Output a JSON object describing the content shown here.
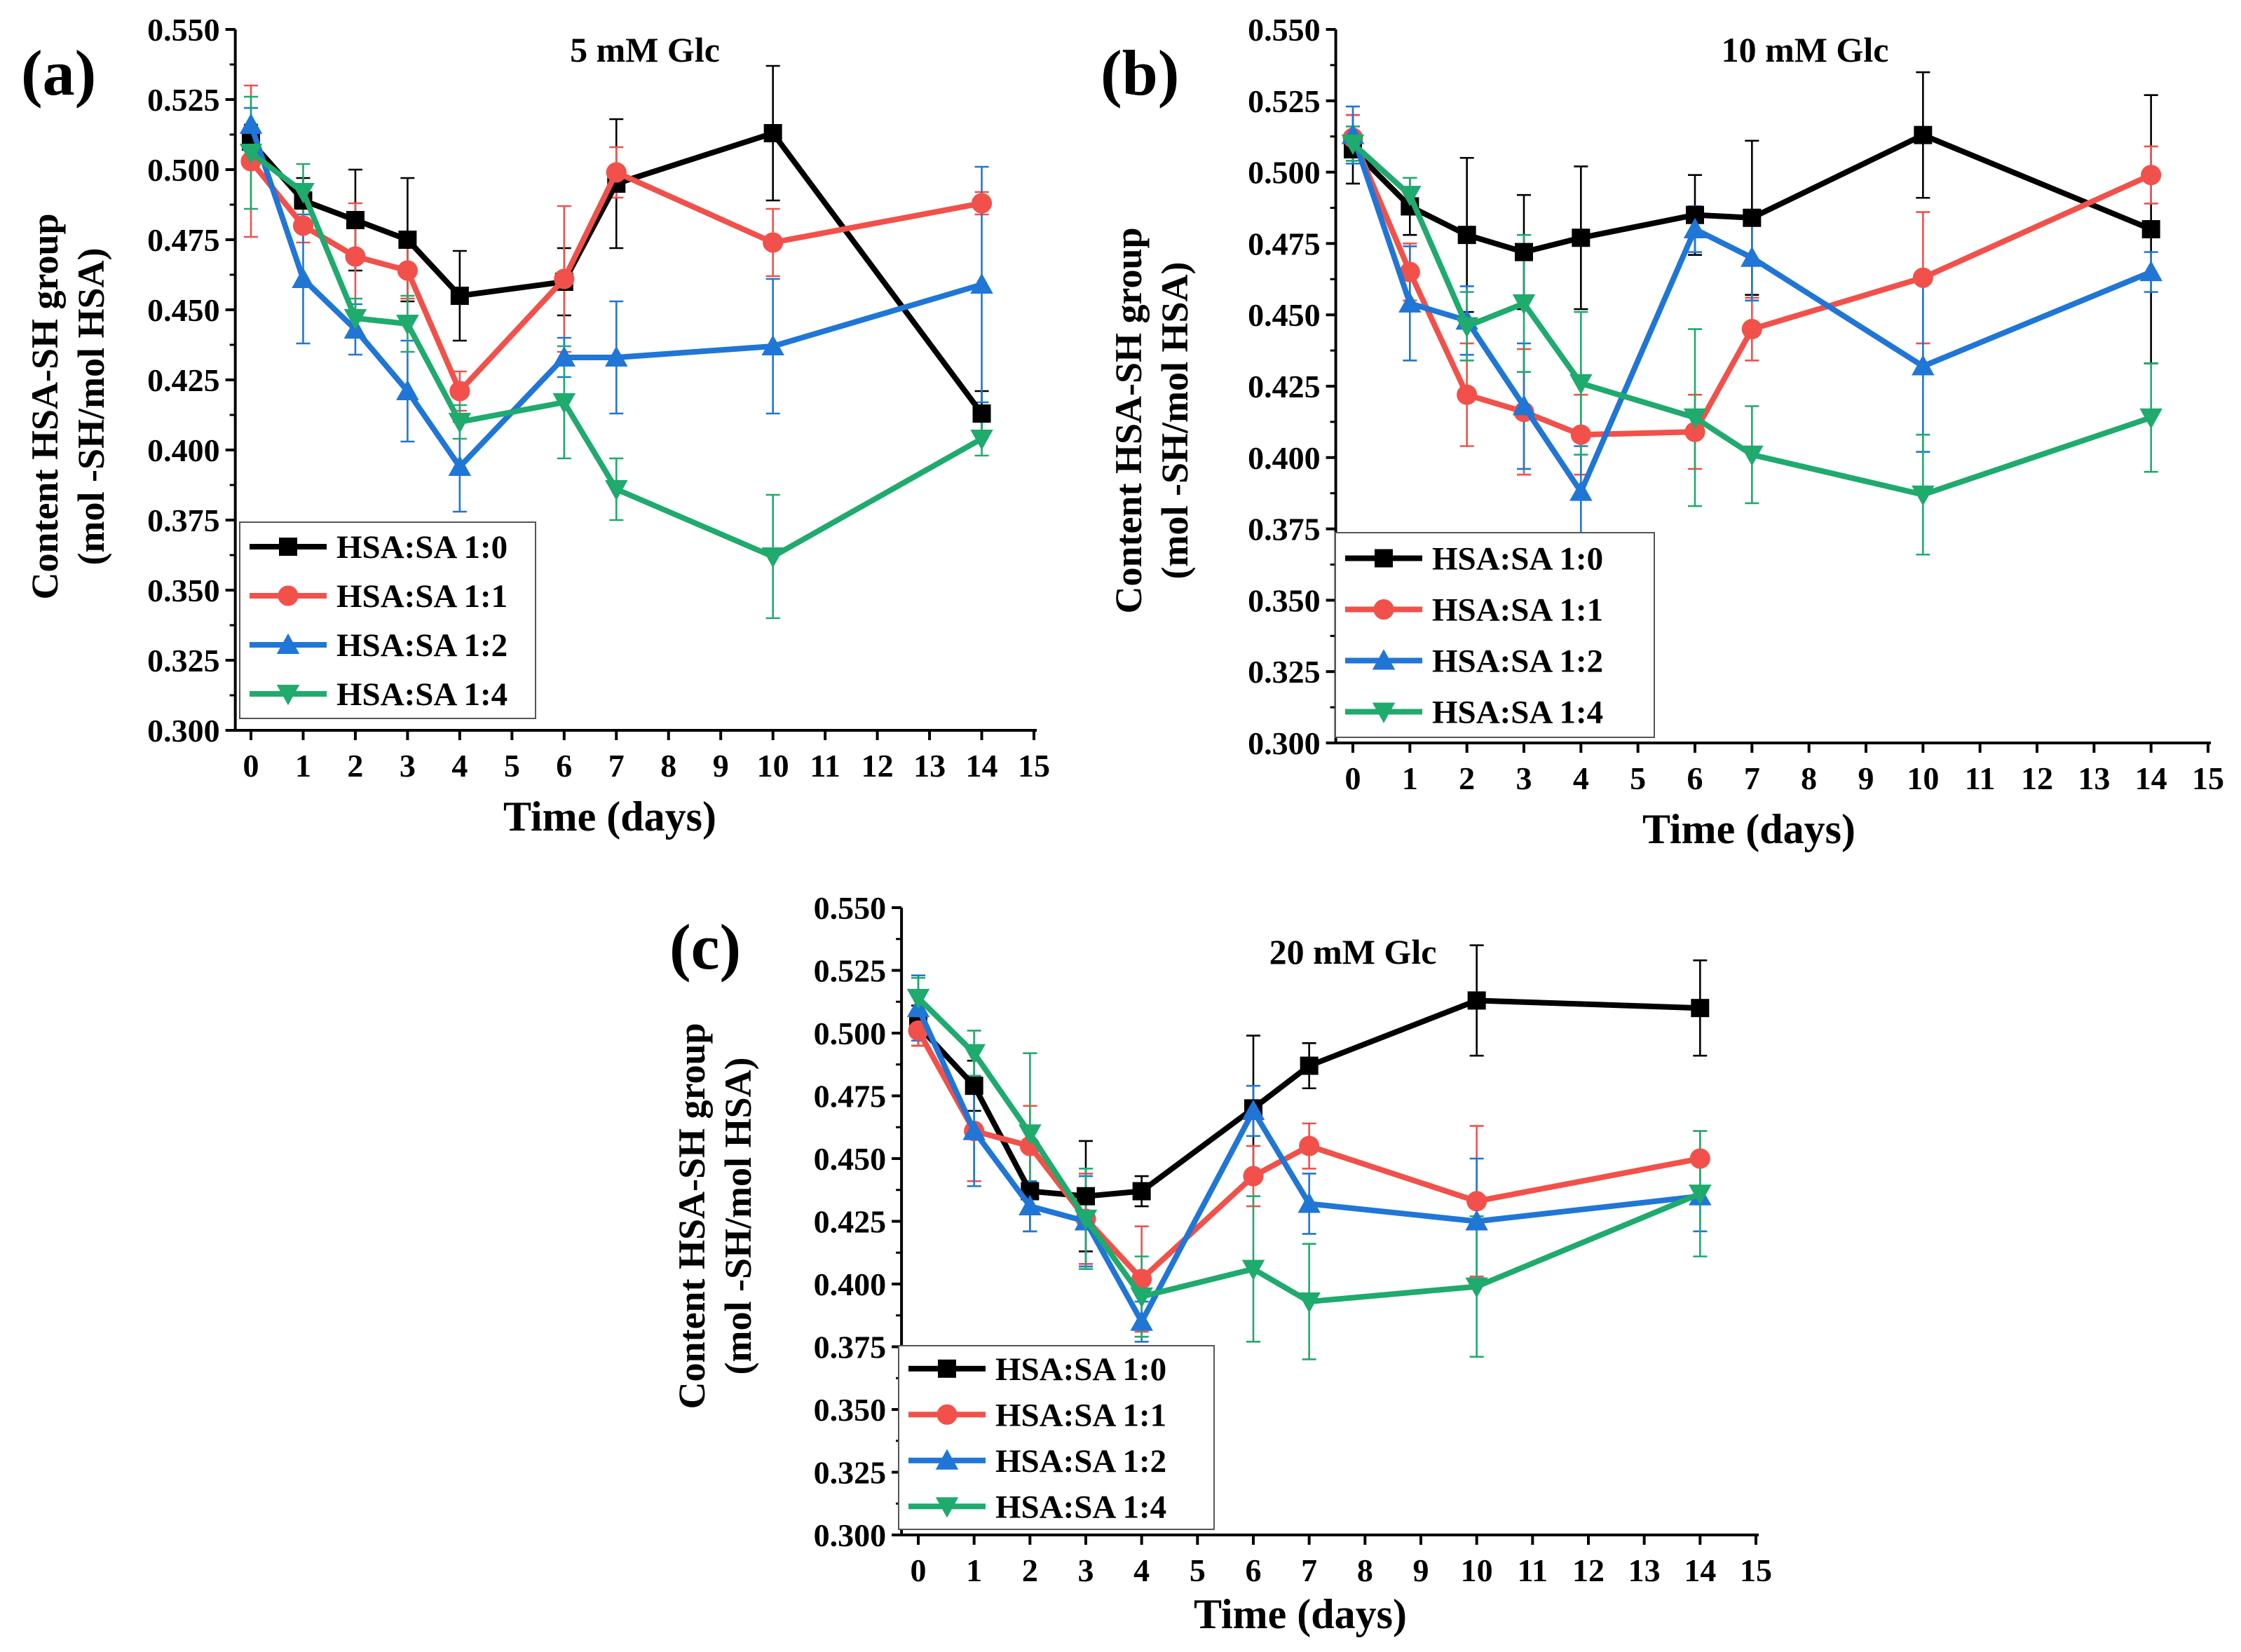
{
  "figure": {
    "series_colors": {
      "HSA:SA 1:0": "#000000",
      "HSA:SA 1:1": "#f2504a",
      "HSA:SA 1:2": "#1f76d6",
      "HSA:SA 1:4": "#1faa6e"
    }
  },
  "chart_data": [
    {
      "panel": "(a)",
      "type": "line",
      "title": "5 mM Glc",
      "xlabel": "Time (days)",
      "ylabel_line1": "Content HSA-SH group",
      "ylabel_line2": "(mol -SH/mol HSA)",
      "xlim": [
        -0.3,
        15
      ],
      "ylim": [
        0.3,
        0.55
      ],
      "xticks": [
        "0",
        "1",
        "2",
        "3",
        "4",
        "5",
        "6",
        "7",
        "8",
        "9",
        "10",
        "11",
        "12",
        "13",
        "14",
        "15"
      ],
      "yticks": [
        "0.300",
        "0.325",
        "0.350",
        "0.375",
        "0.400",
        "0.425",
        "0.450",
        "0.475",
        "0.500",
        "0.525",
        "0.550"
      ],
      "legend_position": "bottom-left",
      "x": [
        0,
        1,
        2,
        3,
        4,
        6,
        7,
        10,
        14
      ],
      "series": [
        {
          "name": "HSA:SA 1:0",
          "color": "#000000",
          "marker": "square",
          "values": [
            0.51,
            0.489,
            0.482,
            0.475,
            0.455,
            0.46,
            0.495,
            0.513,
            0.413
          ],
          "errors": [
            0.006,
            0.008,
            0.018,
            0.022,
            0.016,
            0.012,
            0.023,
            0.024,
            0.008
          ]
        },
        {
          "name": "HSA:SA 1:1",
          "color": "#f2504a",
          "marker": "circle",
          "values": [
            0.503,
            0.48,
            0.469,
            0.464,
            0.421,
            0.461,
            0.499,
            0.474,
            0.488
          ],
          "errors": [
            0.027,
            0.006,
            0.019,
            0.01,
            0.007,
            0.026,
            0.009,
            0.012,
            0.004
          ]
        },
        {
          "name": "HSA:SA 1:2",
          "color": "#1f76d6",
          "marker": "triangle-up",
          "values": [
            0.516,
            0.461,
            0.443,
            0.421,
            0.394,
            0.433,
            0.433,
            0.437,
            0.459
          ],
          "errors": [
            0.006,
            0.023,
            0.009,
            0.018,
            0.016,
            0.007,
            0.02,
            0.024,
            0.042
          ]
        },
        {
          "name": "HSA:SA 1:4",
          "color": "#1faa6e",
          "marker": "triangle-down",
          "values": [
            0.506,
            0.492,
            0.447,
            0.445,
            0.41,
            0.417,
            0.386,
            0.362,
            0.404
          ],
          "errors": [
            0.02,
            0.01,
            0.007,
            0.01,
            0.006,
            0.02,
            0.011,
            0.022,
            0.006
          ]
        }
      ]
    },
    {
      "panel": "(b)",
      "type": "line",
      "title": "10 mM Glc",
      "xlabel": "Time (days)",
      "ylabel_line1": "Content HSA-SH group",
      "ylabel_line2": "(mol -SH/mol HSA)",
      "xlim": [
        -0.3,
        15
      ],
      "ylim": [
        0.3,
        0.55
      ],
      "xticks": [
        "0",
        "1",
        "2",
        "3",
        "4",
        "5",
        "6",
        "7",
        "8",
        "9",
        "10",
        "11",
        "12",
        "13",
        "14",
        "15"
      ],
      "yticks": [
        "0.300",
        "0.325",
        "0.350",
        "0.375",
        "0.400",
        "0.425",
        "0.450",
        "0.475",
        "0.500",
        "0.525",
        "0.550"
      ],
      "legend_position": "bottom-left",
      "x": [
        0,
        1,
        2,
        3,
        4,
        6,
        7,
        10,
        14
      ],
      "series": [
        {
          "name": "HSA:SA 1:0",
          "color": "#000000",
          "marker": "square",
          "values": [
            0.508,
            0.488,
            0.478,
            0.472,
            0.477,
            0.485,
            0.484,
            0.513,
            0.48
          ],
          "errors": [
            0.012,
            0.01,
            0.027,
            0.02,
            0.025,
            0.014,
            0.027,
            0.022,
            0.047
          ]
        },
        {
          "name": "HSA:SA 1:1",
          "color": "#f2504a",
          "marker": "circle",
          "values": [
            0.512,
            0.465,
            0.422,
            0.416,
            0.408,
            0.409,
            0.445,
            0.463,
            0.499
          ],
          "errors": [
            0.008,
            0.01,
            0.018,
            0.022,
            0.014,
            0.013,
            0.011,
            0.023,
            0.01
          ]
        },
        {
          "name": "HSA:SA 1:2",
          "color": "#1f76d6",
          "marker": "triangle-up",
          "values": [
            0.513,
            0.454,
            0.448,
            0.418,
            0.388,
            0.48,
            0.47,
            0.432,
            0.465
          ],
          "errors": [
            0.01,
            0.02,
            0.012,
            0.022,
            0.016,
            0.008,
            0.015,
            0.03,
            0.007
          ]
        },
        {
          "name": "HSA:SA 1:4",
          "color": "#1faa6e",
          "marker": "triangle-down",
          "values": [
            0.51,
            0.492,
            0.446,
            0.454,
            0.426,
            0.414,
            0.401,
            0.387,
            0.414
          ],
          "errors": [
            0.006,
            0.006,
            0.012,
            0.024,
            0.025,
            0.031,
            0.017,
            0.021,
            0.019
          ]
        }
      ]
    },
    {
      "panel": "(c)",
      "type": "line",
      "title": "20 mM Glc",
      "xlabel": "Time (days)",
      "ylabel_line1": "Content HSA-SH group",
      "ylabel_line2": "(mol -SH/mol HSA)",
      "xlim": [
        -0.3,
        15
      ],
      "ylim": [
        0.3,
        0.55
      ],
      "xticks": [
        "0",
        "1",
        "2",
        "3",
        "4",
        "5",
        "6",
        "7",
        "8",
        "9",
        "10",
        "11",
        "12",
        "13",
        "14",
        "15"
      ],
      "yticks": [
        "0.300",
        "0.325",
        "0.350",
        "0.375",
        "0.400",
        "0.425",
        "0.450",
        "0.475",
        "0.500",
        "0.525",
        "0.550"
      ],
      "legend_position": "bottom-left",
      "x": [
        0,
        1,
        2,
        3,
        4,
        6,
        7,
        10,
        14
      ],
      "series": [
        {
          "name": "HSA:SA 1:0",
          "color": "#000000",
          "marker": "square",
          "values": [
            0.503,
            0.479,
            0.437,
            0.435,
            0.437,
            0.47,
            0.487,
            0.513,
            0.51
          ],
          "errors": [
            0.008,
            0.01,
            0.016,
            0.022,
            0.006,
            0.029,
            0.009,
            0.022,
            0.019
          ]
        },
        {
          "name": "HSA:SA 1:1",
          "color": "#f2504a",
          "marker": "circle",
          "values": [
            0.501,
            0.461,
            0.455,
            0.426,
            0.402,
            0.443,
            0.455,
            0.433,
            0.45
          ],
          "errors": [
            0.006,
            0.02,
            0.016,
            0.018,
            0.021,
            0.012,
            0.009,
            0.03,
            0.011
          ]
        },
        {
          "name": "HSA:SA 1:2",
          "color": "#1f76d6",
          "marker": "triangle-up",
          "values": [
            0.51,
            0.461,
            0.431,
            0.425,
            0.385,
            0.469,
            0.432,
            0.425,
            0.435
          ],
          "errors": [
            0.013,
            0.022,
            0.01,
            0.018,
            0.008,
            0.01,
            0.012,
            0.025,
            0.014
          ]
        },
        {
          "name": "HSA:SA 1:4",
          "color": "#1faa6e",
          "marker": "triangle-down",
          "values": [
            0.514,
            0.492,
            0.46,
            0.426,
            0.395,
            0.406,
            0.393,
            0.399,
            0.436
          ],
          "errors": [
            0.008,
            0.009,
            0.032,
            0.02,
            0.016,
            0.029,
            0.023,
            0.028,
            0.025
          ]
        }
      ]
    }
  ]
}
